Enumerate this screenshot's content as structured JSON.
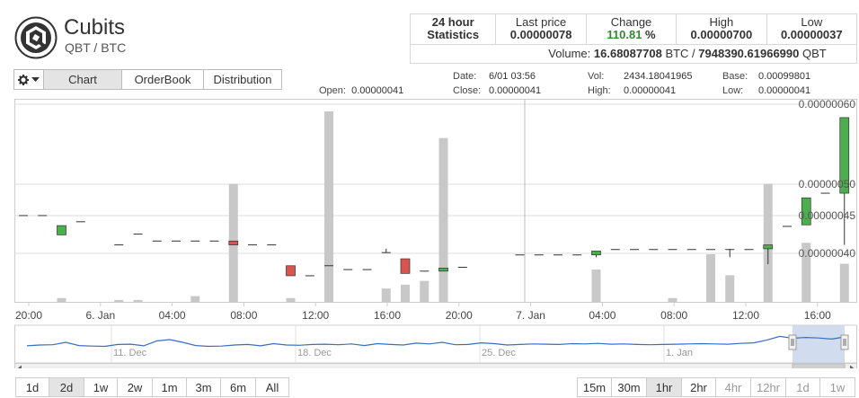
{
  "header": {
    "coin_name": "Cubits",
    "pair": "QBT / BTC",
    "logo_icon": "cubits-logo-icon"
  },
  "stats": {
    "title_line1": "24 hour",
    "title_line2": "Statistics",
    "last_price_label": "Last price",
    "last_price": "0.00000078",
    "change_label": "Change",
    "change_value": "110.81",
    "change_unit": " %",
    "high_label": "High",
    "high_value": "0.00000700",
    "low_label": "Low",
    "low_value": "0.00000037",
    "volume_label": "Volume:",
    "volume_btc": "16.68087708",
    "volume_btc_unit": "BTC /",
    "volume_qbt": "7948390.61966990",
    "volume_qbt_unit": "QBT"
  },
  "tabs": {
    "gear_icon": "gear-icon",
    "items": [
      "Chart",
      "OrderBook",
      "Distribution"
    ],
    "selected": "Chart"
  },
  "ohlc": {
    "open_label": "Open:",
    "open_value": "0.00000041",
    "date_label": "Date:",
    "date_value": "6/01 03:56",
    "close_label": "Close:",
    "close_value": "0.00000041",
    "vol_label": "Vol:",
    "vol_value": "2434.18041965",
    "high_label": "High:",
    "high_value": "0.00000041",
    "base_label": "Base:",
    "base_value": "0.00099801",
    "low_label": "Low:",
    "low_value": "0.00000041"
  },
  "chart_data": {
    "type": "candlestick",
    "y_ticks": [
      "0.00000060",
      "0.00000050",
      "0.00000045",
      "0.00000040"
    ],
    "x_ticks": [
      "20:00",
      "6. Jan",
      "04:00",
      "08:00",
      "12:00",
      "16:00",
      "20:00",
      "7. Jan",
      "04:00",
      "08:00",
      "12:00",
      "16:00"
    ],
    "navigator_labels": [
      "11. Dec",
      "18. Dec",
      "25. Dec",
      "1. Jan"
    ],
    "colors": {
      "up": "#4cae4c",
      "down": "#d9534f",
      "volume": "#c8c8c8",
      "navigator_line": "#3a6ebd",
      "navigator_window": "#c5d3ea"
    },
    "candles": [
      {
        "x": 0.0,
        "o": 4.58e-07,
        "c": 4.58e-07,
        "h": 4.58e-07,
        "l": 4.58e-07,
        "v": 0
      },
      {
        "x": 0.5,
        "o": 4.58e-07,
        "c": 4.58e-07,
        "h": 4.58e-07,
        "l": 4.58e-07,
        "v": 0
      },
      {
        "x": 1.0,
        "o": 4.33e-07,
        "c": 4.45e-07,
        "h": 4.45e-07,
        "l": 4.33e-07,
        "v": 0.02
      },
      {
        "x": 1.5,
        "o": 4.5e-07,
        "c": 4.5e-07,
        "h": 4.5e-07,
        "l": 4.5e-07,
        "v": 0
      },
      {
        "x": 2.5,
        "o": 4.2e-07,
        "c": 4.2e-07,
        "h": 4.2e-07,
        "l": 4.2e-07,
        "v": 0.01
      },
      {
        "x": 3.0,
        "o": 4.34e-07,
        "c": 4.34e-07,
        "h": 4.34e-07,
        "l": 4.34e-07,
        "v": 0.01
      },
      {
        "x": 3.5,
        "o": 4.25e-07,
        "c": 4.25e-07,
        "h": 4.25e-07,
        "l": 4.25e-07,
        "v": 0
      },
      {
        "x": 4.0,
        "o": 4.25e-07,
        "c": 4.25e-07,
        "h": 4.25e-07,
        "l": 4.25e-07,
        "v": 0
      },
      {
        "x": 4.5,
        "o": 4.25e-07,
        "c": 4.25e-07,
        "h": 4.25e-07,
        "l": 4.25e-07,
        "v": 0.03
      },
      {
        "x": 5.0,
        "o": 4.25e-07,
        "c": 4.25e-07,
        "h": 4.25e-07,
        "l": 4.25e-07,
        "v": 0
      },
      {
        "x": 5.5,
        "o": 4.25e-07,
        "c": 4.2e-07,
        "h": 4.25e-07,
        "l": 4.2e-07,
        "v": 0.62
      },
      {
        "x": 6.0,
        "o": 4.2e-07,
        "c": 4.2e-07,
        "h": 4.2e-07,
        "l": 4.2e-07,
        "v": 0
      },
      {
        "x": 6.5,
        "o": 4.2e-07,
        "c": 4.2e-07,
        "h": 4.2e-07,
        "l": 4.2e-07,
        "v": 0
      },
      {
        "x": 7.0,
        "o": 3.93e-07,
        "c": 3.8e-07,
        "h": 3.93e-07,
        "l": 3.8e-07,
        "v": 0.02
      },
      {
        "x": 7.5,
        "o": 3.8e-07,
        "c": 3.8e-07,
        "h": 3.8e-07,
        "l": 3.8e-07,
        "v": 0
      },
      {
        "x": 8.0,
        "o": 3.93e-07,
        "c": 3.93e-07,
        "h": 3.93e-07,
        "l": 3.93e-07,
        "v": 1.0
      },
      {
        "x": 8.5,
        "o": 3.88e-07,
        "c": 3.88e-07,
        "h": 3.88e-07,
        "l": 3.88e-07,
        "v": 0
      },
      {
        "x": 9.0,
        "o": 3.88e-07,
        "c": 3.88e-07,
        "h": 3.88e-07,
        "l": 3.88e-07,
        "v": 0
      },
      {
        "x": 9.5,
        "o": 4.1e-07,
        "c": 4.1e-07,
        "h": 4.15e-07,
        "l": 4.1e-07,
        "v": 0.07
      },
      {
        "x": 10.0,
        "o": 4.02e-07,
        "c": 3.83e-07,
        "h": 4.02e-07,
        "l": 3.83e-07,
        "v": 0.09
      },
      {
        "x": 10.5,
        "o": 3.86e-07,
        "c": 3.86e-07,
        "h": 3.86e-07,
        "l": 3.86e-07,
        "v": 0.11
      },
      {
        "x": 11.0,
        "o": 3.86e-07,
        "c": 3.9e-07,
        "h": 3.9e-07,
        "l": 3.86e-07,
        "v": 0.86
      },
      {
        "x": 11.5,
        "o": 3.91e-07,
        "c": 3.91e-07,
        "h": 3.91e-07,
        "l": 3.91e-07,
        "v": 0
      },
      {
        "x": 13.0,
        "o": 4.07e-07,
        "c": 4.07e-07,
        "h": 4.07e-07,
        "l": 4.07e-07,
        "v": 0
      },
      {
        "x": 13.5,
        "o": 4.07e-07,
        "c": 4.07e-07,
        "h": 4.07e-07,
        "l": 4.07e-07,
        "v": 0
      },
      {
        "x": 14.0,
        "o": 4.07e-07,
        "c": 4.07e-07,
        "h": 4.07e-07,
        "l": 4.07e-07,
        "v": 0
      },
      {
        "x": 14.5,
        "o": 4.07e-07,
        "c": 4.07e-07,
        "h": 4.07e-07,
        "l": 4.07e-07,
        "v": 0
      },
      {
        "x": 15.0,
        "o": 4.07e-07,
        "c": 4.12e-07,
        "h": 4.12e-07,
        "l": 4.04e-07,
        "v": 0.17
      },
      {
        "x": 15.5,
        "o": 4.14e-07,
        "c": 4.14e-07,
        "h": 4.14e-07,
        "l": 4.14e-07,
        "v": 0
      },
      {
        "x": 16.0,
        "o": 4.14e-07,
        "c": 4.14e-07,
        "h": 4.14e-07,
        "l": 4.14e-07,
        "v": 0
      },
      {
        "x": 16.5,
        "o": 4.14e-07,
        "c": 4.14e-07,
        "h": 4.14e-07,
        "l": 4.14e-07,
        "v": 0
      },
      {
        "x": 17.0,
        "o": 4.14e-07,
        "c": 4.14e-07,
        "h": 4.14e-07,
        "l": 4.14e-07,
        "v": 0.02
      },
      {
        "x": 17.5,
        "o": 4.14e-07,
        "c": 4.14e-07,
        "h": 4.14e-07,
        "l": 4.14e-07,
        "v": 0
      },
      {
        "x": 18.0,
        "o": 4.14e-07,
        "c": 4.14e-07,
        "h": 4.14e-07,
        "l": 4.14e-07,
        "v": 0.25
      },
      {
        "x": 18.5,
        "o": 4.14e-07,
        "c": 4.14e-07,
        "h": 4.15e-07,
        "l": 4.04e-07,
        "v": 0.14
      },
      {
        "x": 19.0,
        "o": 4.14e-07,
        "c": 4.14e-07,
        "h": 4.14e-07,
        "l": 4.14e-07,
        "v": 0
      },
      {
        "x": 19.5,
        "o": 4.15e-07,
        "c": 4.2e-07,
        "h": 4.2e-07,
        "l": 3.95e-07,
        "v": 0.62
      },
      {
        "x": 20.0,
        "o": 4.44e-07,
        "c": 4.44e-07,
        "h": 4.44e-07,
        "l": 4.44e-07,
        "v": 0
      },
      {
        "x": 20.5,
        "o": 4.46e-07,
        "c": 4.81e-07,
        "h": 4.81e-07,
        "l": 4.46e-07,
        "v": 0.31
      },
      {
        "x": 21.0,
        "o": 4.87e-07,
        "c": 4.87e-07,
        "h": 4.87e-07,
        "l": 4.87e-07,
        "v": 0
      },
      {
        "x": 21.5,
        "o": 4.87e-07,
        "c": 5.85e-07,
        "h": 5.85e-07,
        "l": 4.2e-07,
        "v": 0.2
      }
    ],
    "volume_bars": [
      {
        "x": 1.0,
        "v": 0.02
      },
      {
        "x": 2.5,
        "v": 0.01
      },
      {
        "x": 3.0,
        "v": 0.01
      },
      {
        "x": 4.5,
        "v": 0.03
      },
      {
        "x": 5.5,
        "v": 0.62
      },
      {
        "x": 7.0,
        "v": 0.02
      },
      {
        "x": 8.0,
        "v": 1.0
      },
      {
        "x": 9.5,
        "v": 0.07
      },
      {
        "x": 10.0,
        "v": 0.09
      },
      {
        "x": 10.5,
        "v": 0.11
      },
      {
        "x": 11.0,
        "v": 0.86
      },
      {
        "x": 15.0,
        "v": 0.17
      },
      {
        "x": 17.0,
        "v": 0.02
      },
      {
        "x": 18.0,
        "v": 0.25
      },
      {
        "x": 18.5,
        "v": 0.14
      },
      {
        "x": 19.5,
        "v": 0.62
      },
      {
        "x": 20.5,
        "v": 0.31
      },
      {
        "x": 21.5,
        "v": 0.2
      }
    ],
    "y_range": [
      3.5e-07,
      6e-07
    ],
    "navigator_values": [
      0.37,
      0.4,
      0.41,
      0.5,
      0.38,
      0.36,
      0.35,
      0.42,
      0.43,
      0.37,
      0.55,
      0.6,
      0.5,
      0.38,
      0.35,
      0.36,
      0.4,
      0.42,
      0.37,
      0.45,
      0.4,
      0.39,
      0.42,
      0.43,
      0.41,
      0.44,
      0.38,
      0.45,
      0.42,
      0.4,
      0.47,
      0.44,
      0.5,
      0.41,
      0.42,
      0.48,
      0.45,
      0.4,
      0.42,
      0.44,
      0.43,
      0.42,
      0.45,
      0.44,
      0.46,
      0.43,
      0.44,
      0.42,
      0.41,
      0.42,
      0.43,
      0.44,
      0.45,
      0.44,
      0.43,
      0.46,
      0.48,
      0.58,
      0.72,
      0.65,
      0.68,
      0.66,
      0.62,
      0.7
    ]
  },
  "range_buttons": [
    "1d",
    "2d",
    "1w",
    "2w",
    "1m",
    "3m",
    "6m",
    "All"
  ],
  "range_selected": "2d",
  "interval_buttons": [
    "15m",
    "30m",
    "1hr",
    "2hr",
    "4hr",
    "12hr",
    "1d",
    "1w"
  ],
  "interval_selected": "1hr",
  "interval_dim": [
    "4hr",
    "12hr",
    "1d",
    "1w"
  ]
}
